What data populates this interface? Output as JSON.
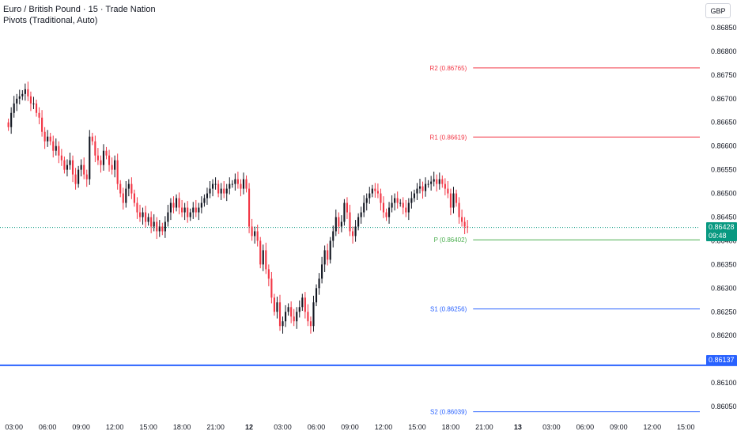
{
  "legend": {
    "title": "Euro / British Pound · 15 · Trade Nation",
    "indicator": "Pivots (Traditional, Auto)"
  },
  "currency_button": "GBP",
  "current_price": {
    "value": "0.86428",
    "countdown": "09:48",
    "color": "#089981"
  },
  "alert_price": {
    "value": "0.86137",
    "color": "#2962ff"
  },
  "colors": {
    "up": "#089981",
    "down": "#f23645",
    "candle_dark": "#131722",
    "pivot_resistance": "#f23645",
    "pivot_pivot": "#4caf50",
    "pivot_support": "#2962ff"
  },
  "chart_data": {
    "type": "candlestick",
    "y_ticks": [
      "0.86850",
      "0.86800",
      "0.86750",
      "0.86700",
      "0.86650",
      "0.86600",
      "0.86550",
      "0.86500",
      "0.86450",
      "0.86400",
      "0.86350",
      "0.86300",
      "0.86250",
      "0.86200",
      "0.86150",
      "0.86100",
      "0.86050"
    ],
    "ylim": [
      0.86025,
      0.86875
    ],
    "x_ticks": [
      {
        "label": "03:00",
        "t": 2
      },
      {
        "label": "06:00",
        "t": 14
      },
      {
        "label": "09:00",
        "t": 26
      },
      {
        "label": "12:00",
        "t": 38
      },
      {
        "label": "15:00",
        "t": 50
      },
      {
        "label": "18:00",
        "t": 62
      },
      {
        "label": "21:00",
        "t": 74
      },
      {
        "label": "12",
        "t": 86
      },
      {
        "label": "03:00",
        "t": 98
      },
      {
        "label": "06:00",
        "t": 110
      },
      {
        "label": "09:00",
        "t": 122
      },
      {
        "label": "12:00",
        "t": 134
      },
      {
        "label": "15:00",
        "t": 146
      },
      {
        "label": "18:00",
        "t": 158
      },
      {
        "label": "21:00",
        "t": 170
      },
      {
        "label": "13",
        "t": 182
      },
      {
        "label": "03:00",
        "t": 194
      },
      {
        "label": "06:00",
        "t": 206
      },
      {
        "label": "09:00",
        "t": 218
      },
      {
        "label": "12:00",
        "t": 230
      },
      {
        "label": "15:00",
        "t": 242
      }
    ],
    "x_range": [
      -3,
      247
    ],
    "pivots": [
      {
        "label": "R2 (0.86765)",
        "value": 0.86765,
        "kind": "resistance"
      },
      {
        "label": "R1 (0.86619)",
        "value": 0.86619,
        "kind": "resistance"
      },
      {
        "label": "P (0.86402)",
        "value": 0.86402,
        "kind": "pivot"
      },
      {
        "label": "S1 (0.86256)",
        "value": 0.86256,
        "kind": "support"
      },
      {
        "label": "S2 (0.86039)",
        "value": 0.86039,
        "kind": "support"
      }
    ],
    "pivot_start_t": 166,
    "closes": [
      0.8664,
      0.8667,
      0.8669,
      0.867,
      0.86705,
      0.8671,
      0.8672,
      0.86705,
      0.8669,
      0.8669,
      0.8667,
      0.8666,
      0.8663,
      0.8661,
      0.8662,
      0.8661,
      0.8659,
      0.866,
      0.8658,
      0.8657,
      0.8655,
      0.8656,
      0.8657,
      0.8654,
      0.8652,
      0.8655,
      0.8656,
      0.8654,
      0.8653,
      0.8662,
      0.8661,
      0.8658,
      0.8657,
      0.8656,
      0.8659,
      0.8658,
      0.8656,
      0.8655,
      0.8657,
      0.8652,
      0.865,
      0.8648,
      0.8651,
      0.8652,
      0.865,
      0.8648,
      0.8646,
      0.8645,
      0.8646,
      0.8644,
      0.8645,
      0.8643,
      0.8644,
      0.8642,
      0.8643,
      0.8642,
      0.8644,
      0.8646,
      0.8648,
      0.8647,
      0.8649,
      0.8647,
      0.8646,
      0.8647,
      0.8645,
      0.8646,
      0.8647,
      0.8646,
      0.8647,
      0.8648,
      0.8649,
      0.865,
      0.8651,
      0.8652,
      0.8652,
      0.865,
      0.8651,
      0.865,
      0.8651,
      0.8652,
      0.8652,
      0.8653,
      0.8652,
      0.8651,
      0.8653,
      0.8651,
      0.8643,
      0.8641,
      0.8642,
      0.864,
      0.8635,
      0.8638,
      0.8634,
      0.8632,
      0.8628,
      0.8625,
      0.8627,
      0.8622,
      0.8623,
      0.8625,
      0.8626,
      0.8624,
      0.8623,
      0.8625,
      0.8626,
      0.8628,
      0.8625,
      0.8623,
      0.8622,
      0.8627,
      0.863,
      0.8632,
      0.8635,
      0.8638,
      0.8636,
      0.864,
      0.8642,
      0.8645,
      0.8643,
      0.8644,
      0.8648,
      0.8646,
      0.8642,
      0.8641,
      0.8643,
      0.8645,
      0.8646,
      0.8648,
      0.8649,
      0.865,
      0.8651,
      0.86505,
      0.865,
      0.8648,
      0.8646,
      0.8645,
      0.8647,
      0.8648,
      0.8649,
      0.8648,
      0.8648,
      0.8647,
      0.8646,
      0.8648,
      0.8649,
      0.865,
      0.8651,
      0.86515,
      0.86505,
      0.8652,
      0.8652,
      0.86525,
      0.8653,
      0.8652,
      0.8653,
      0.8652,
      0.8651,
      0.865,
      0.8647,
      0.865,
      0.8648,
      0.8645,
      0.8644,
      0.8643,
      0.86428
    ]
  }
}
